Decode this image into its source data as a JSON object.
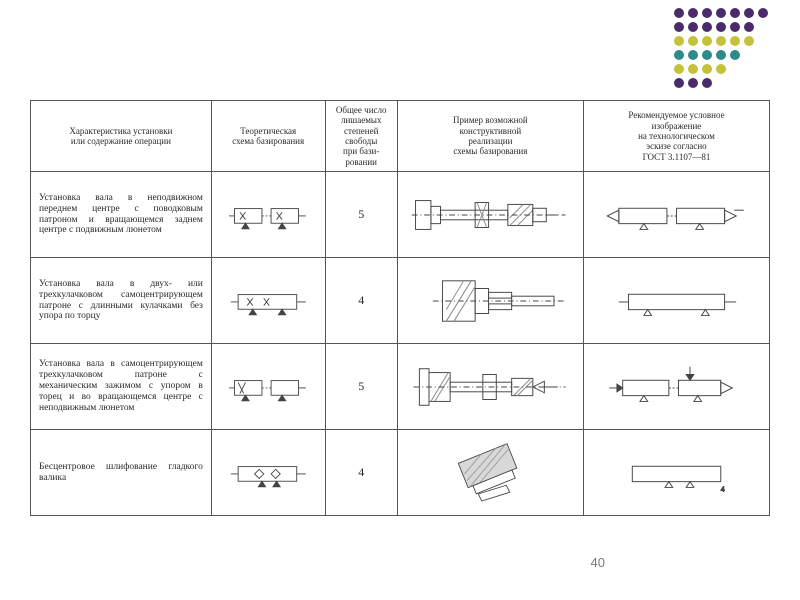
{
  "dot_matrix": {
    "rows": 6,
    "cols": 7,
    "colors": {
      "purple": "#4a2c6d",
      "olive": "#c4c23a",
      "teal": "#2f8a8a",
      "empty": "transparent"
    },
    "grid": [
      [
        "purple",
        "purple",
        "purple",
        "purple",
        "purple",
        "purple",
        "purple"
      ],
      [
        "purple",
        "purple",
        "purple",
        "purple",
        "purple",
        "purple",
        "empty"
      ],
      [
        "olive",
        "olive",
        "olive",
        "olive",
        "olive",
        "olive",
        "empty"
      ],
      [
        "teal",
        "teal",
        "teal",
        "teal",
        "teal",
        "empty",
        "empty"
      ],
      [
        "olive",
        "olive",
        "olive",
        "olive",
        "empty",
        "empty",
        "empty"
      ],
      [
        "purple",
        "purple",
        "purple",
        "empty",
        "empty",
        "empty",
        "empty"
      ]
    ]
  },
  "headers": [
    "Характеристика установки\nили содержание операции",
    "Теоретическая\nсхема базирования",
    "Общее число\nлишаемых\nстепеней\nсвободы\nпри бази-\nровании",
    "Пример возможной\nконструктивной\nреализации\nсхемы базирования",
    "Рекомендуемое условное\nизображение\nна технологическом\nэскизе согласно\nГОСТ 3.1107—81"
  ],
  "rows": [
    {
      "desc": "Установка вала в неподвиж­ном переднем центре с повод­ковым патроном и враща­ющемся заднем центре с по­движным люнетом",
      "dof": "5"
    },
    {
      "desc": "Установка вала в двух- или трехкулачковом самоцентри­рующем патроне с длинными кулачками без упора по торцу",
      "dof": "4"
    },
    {
      "desc": "Установка вала в самоцентри­рующем трехкулачковом па­троне с механическим зажи­мом с упором в торец и во вра­щающемся центре с неподвиж­ным люнетом",
      "dof": "5"
    },
    {
      "desc": "Бесцентровое шлифование гладкого валика",
      "dof": "4"
    }
  ],
  "page_number": "40",
  "stroke": "#444444",
  "light_stroke": "#888888",
  "hatch": "#bdbdbd"
}
